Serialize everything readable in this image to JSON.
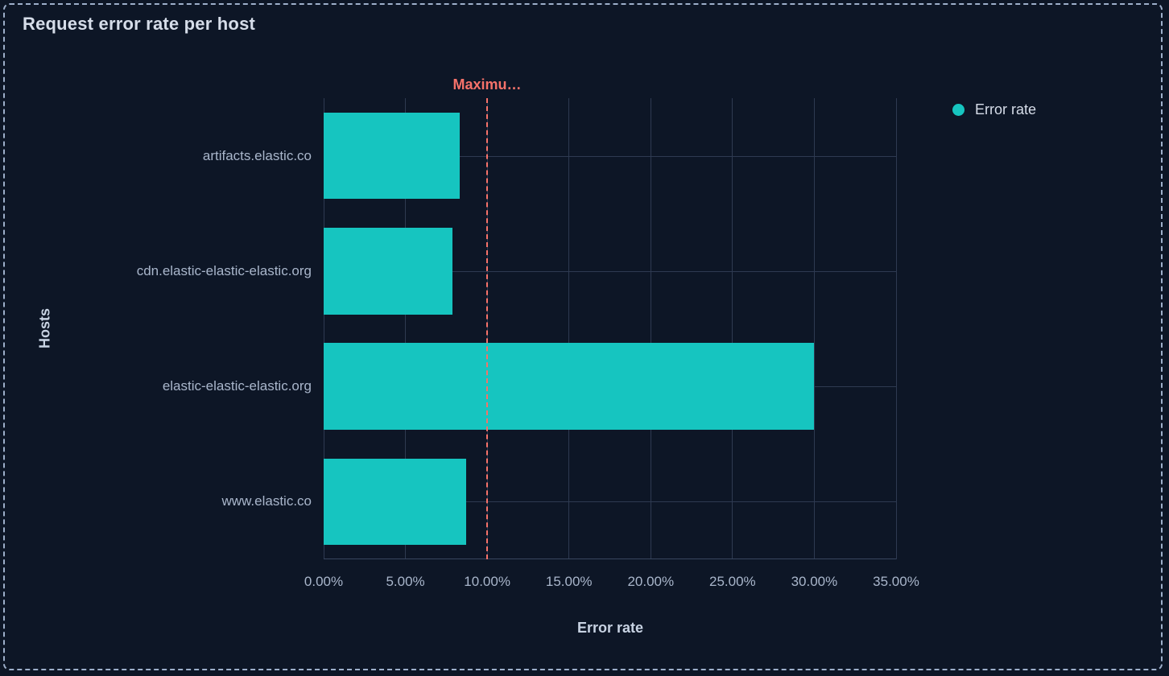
{
  "panel": {
    "title": "Request error rate per host",
    "background": "#0d1626",
    "border_color": "#9dafca"
  },
  "legend": {
    "position": "right",
    "items": [
      {
        "label": "Error rate",
        "color": "#16c5c0",
        "icon": "dot-icon"
      }
    ]
  },
  "chart_data": {
    "type": "bar",
    "orientation": "horizontal",
    "title": "Request error rate per host",
    "xlabel": "Error rate",
    "ylabel": "Hosts",
    "categories": [
      "artifacts.elastic.co",
      "cdn.elastic-elastic-elastic.org",
      "elastic-elastic-elastic.org",
      "www.elastic.co"
    ],
    "series": [
      {
        "name": "Error rate",
        "color": "#16c5c0",
        "values": [
          8.3,
          7.9,
          30,
          8.7
        ],
        "unit": "%"
      }
    ],
    "xlim": [
      0,
      35
    ],
    "x_tick_values": [
      0,
      5,
      10,
      15,
      20,
      25,
      30,
      35
    ],
    "x_ticks": [
      "0.00%",
      "5.00%",
      "10.00%",
      "15.00%",
      "20.00%",
      "25.00%",
      "30.00%",
      "35.00%"
    ],
    "grid": true,
    "grid_color": "#2e3a51",
    "annotation": {
      "label": "Maximu…",
      "value": 10,
      "style": "dashed",
      "color": "#f6726a"
    }
  }
}
